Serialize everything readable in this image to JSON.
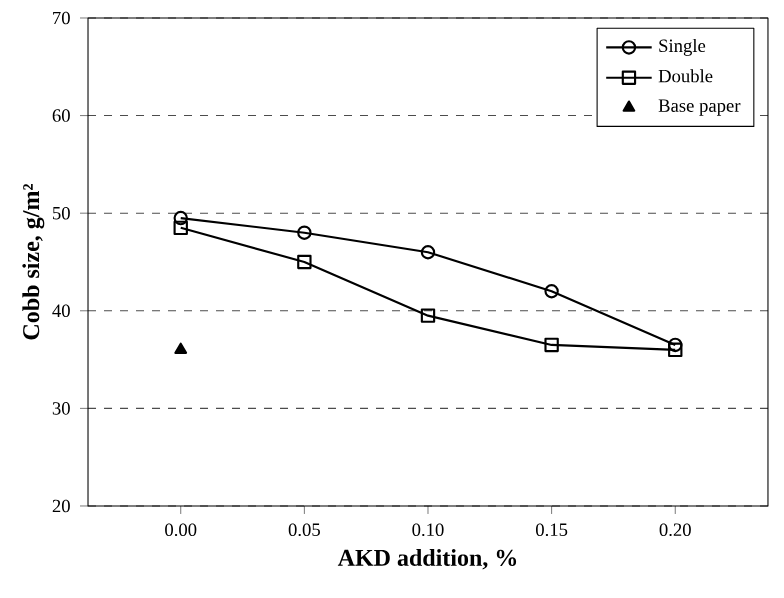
{
  "chart_data": {
    "type": "line",
    "xlabel": "AKD addition, %",
    "ylabel": "Cobb size, g/m²",
    "categories": [
      "0.00",
      "0.05",
      "0.10",
      "0.15",
      "0.20"
    ],
    "ylim": [
      20,
      70
    ],
    "yticks": [
      20,
      30,
      40,
      50,
      60,
      70
    ],
    "grid": "y",
    "legend": "top right",
    "series": [
      {
        "name": "Single",
        "color": "#000000",
        "marker": "circle",
        "values": [
          49.5,
          48,
          46,
          42,
          36.5
        ]
      },
      {
        "name": "Double",
        "color": "#000000",
        "marker": "square",
        "values": [
          48.5,
          45,
          39.5,
          36.5,
          36
        ]
      },
      {
        "name": "Base paper",
        "color": "#000000",
        "type": "scatter",
        "marker": "triangle",
        "x": [
          "0.00"
        ],
        "values": [
          36
        ]
      }
    ]
  }
}
